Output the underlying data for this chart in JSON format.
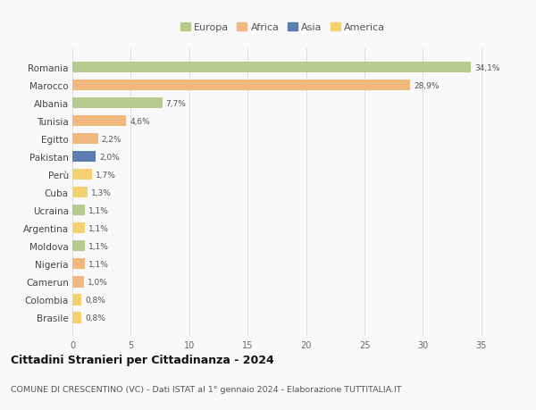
{
  "countries": [
    "Romania",
    "Marocco",
    "Albania",
    "Tunisia",
    "Egitto",
    "Pakistan",
    "Perù",
    "Cuba",
    "Ucraina",
    "Argentina",
    "Moldova",
    "Nigeria",
    "Camerun",
    "Colombia",
    "Brasile"
  ],
  "values": [
    34.1,
    28.9,
    7.7,
    4.6,
    2.2,
    2.0,
    1.7,
    1.3,
    1.1,
    1.1,
    1.1,
    1.1,
    1.0,
    0.8,
    0.8
  ],
  "labels": [
    "34,1%",
    "28,9%",
    "7,7%",
    "4,6%",
    "2,2%",
    "2,0%",
    "1,7%",
    "1,3%",
    "1,1%",
    "1,1%",
    "1,1%",
    "1,1%",
    "1,0%",
    "0,8%",
    "0,8%"
  ],
  "continents": [
    "Europa",
    "Africa",
    "Europa",
    "Africa",
    "Africa",
    "Asia",
    "America",
    "America",
    "Europa",
    "America",
    "Europa",
    "Africa",
    "Africa",
    "America",
    "America"
  ],
  "colors": {
    "Europa": "#b5cc8e",
    "Africa": "#f0b87e",
    "Asia": "#5b7db1",
    "America": "#f5d06e"
  },
  "legend_order": [
    "Europa",
    "Africa",
    "Asia",
    "America"
  ],
  "title": "Cittadini Stranieri per Cittadinanza - 2024",
  "subtitle": "COMUNE DI CRESCENTINO (VC) - Dati ISTAT al 1° gennaio 2024 - Elaborazione TUTTITALIA.IT",
  "xlim": [
    0,
    36
  ],
  "xticks": [
    0,
    5,
    10,
    15,
    20,
    25,
    30,
    35
  ],
  "background_color": "#f9f9f9",
  "grid_color": "#dddddd"
}
